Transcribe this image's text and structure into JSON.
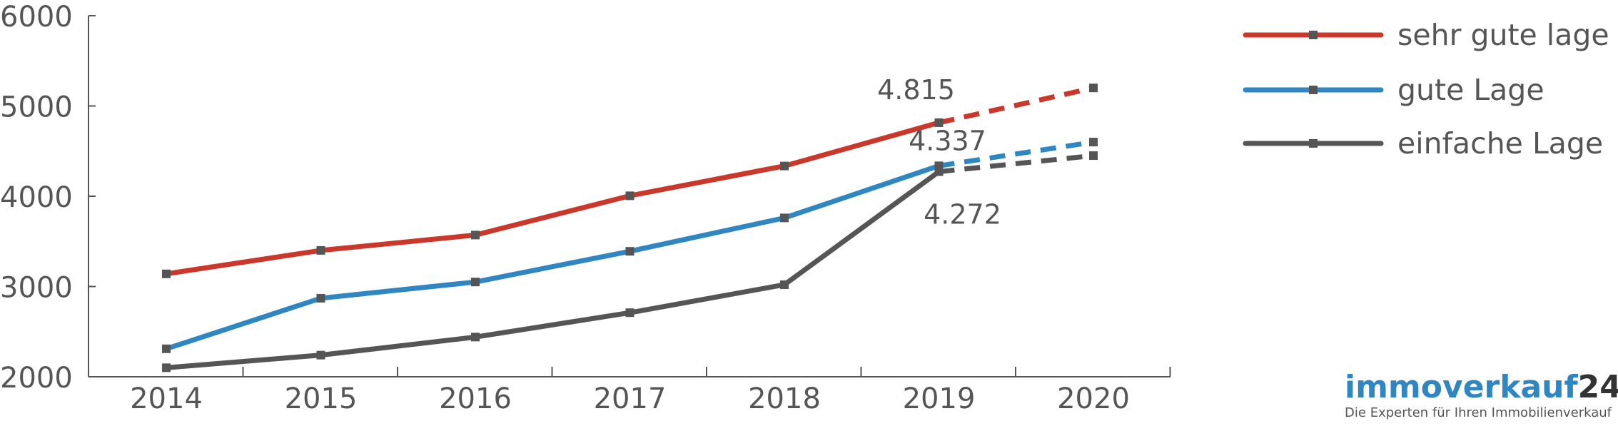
{
  "chart_data": {
    "type": "line",
    "categories": [
      "2014",
      "2015",
      "2016",
      "2017",
      "2018",
      "2019",
      "2020"
    ],
    "ylim": [
      2000,
      6000
    ],
    "yticks": [
      "2000",
      "3000",
      "4000",
      "5000",
      "6000"
    ],
    "series": [
      {
        "name": "sehr gute lage",
        "color": "#c9382a",
        "values": [
          3140,
          3400,
          3570,
          4005,
          4335,
          4815,
          5200
        ],
        "dashed_from_index": 5,
        "label": "4.815",
        "label_index": 5
      },
      {
        "name": "gute Lage",
        "color": "#2f86c0",
        "values": [
          2310,
          2870,
          3050,
          3390,
          3760,
          4337,
          4600
        ],
        "dashed_from_index": 5,
        "label": "4.337",
        "label_index": 5
      },
      {
        "name": "einfache Lage",
        "color": "#555555",
        "values": [
          2100,
          2240,
          2440,
          2710,
          3020,
          4272,
          4450
        ],
        "dashed_from_index": 5,
        "label": "4.272",
        "label_index": 5
      }
    ],
    "legend_position": "top-right",
    "grid": false
  },
  "brand": {
    "name": "immoverkauf",
    "number": "24",
    "tagline": "Die Experten für Ihren Immobilienverkauf"
  }
}
